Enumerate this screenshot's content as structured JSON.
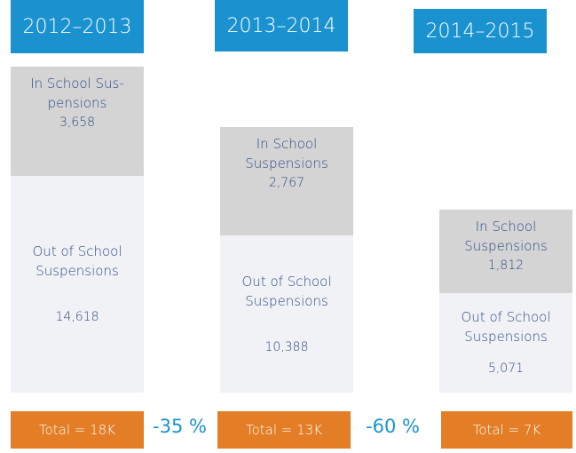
{
  "columns": [
    {
      "year": "2012–2013",
      "in_school": {
        "label": "In School Sus-pensions",
        "value": "3,658"
      },
      "out_school": {
        "label": "Out of School Suspensions",
        "value": "14,618"
      },
      "total": "Total = 18K"
    },
    {
      "year": "2013–2014",
      "in_school": {
        "label": "In School Suspensions",
        "value": "2,767"
      },
      "out_school": {
        "label": "Out of School Suspensions",
        "value": "10,388"
      },
      "total": "Total = 13K"
    },
    {
      "year": "2014–2015",
      "in_school": {
        "label": "In School Suspensions",
        "value": "1,812"
      },
      "out_school": {
        "label": "Out of School Suspensions",
        "value": "5,071"
      },
      "total": "Total = 7K"
    }
  ],
  "changes": [
    "-35 %",
    "-60 %"
  ]
}
